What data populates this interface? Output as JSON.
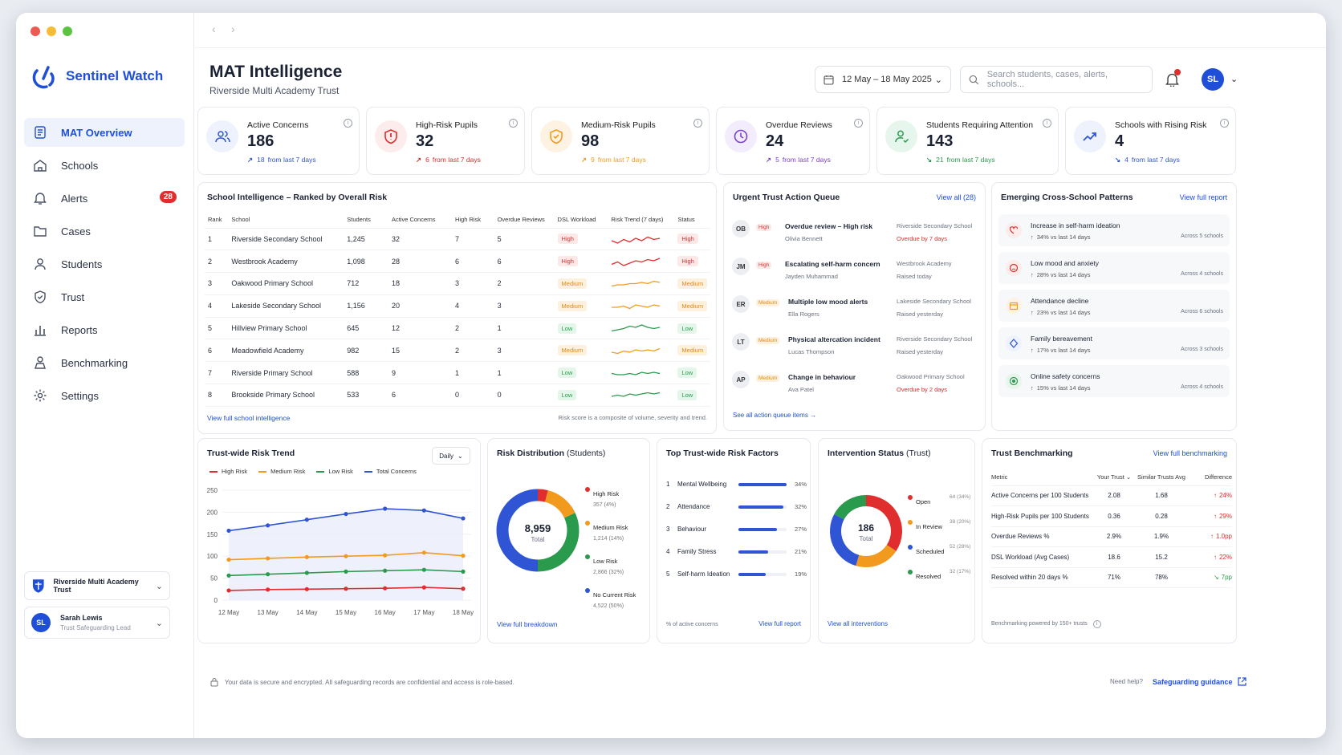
{
  "app": {
    "name": "Sentinel Watch"
  },
  "nav": [
    {
      "label": "MAT Overview",
      "icon": "overview-icon",
      "active": true
    },
    {
      "label": "Schools",
      "icon": "school-icon"
    },
    {
      "label": "Alerts",
      "icon": "bell-icon",
      "badge": "28"
    },
    {
      "label": "Cases",
      "icon": "folder-icon"
    },
    {
      "label": "Students",
      "icon": "person-icon"
    },
    {
      "label": "Trust",
      "icon": "shield-icon"
    },
    {
      "label": "Reports",
      "icon": "bar-chart-icon"
    },
    {
      "label": "Benchmarking",
      "icon": "benchmark-icon"
    },
    {
      "label": "Settings",
      "icon": "gear-icon"
    }
  ],
  "trust_selector": {
    "label": "Riverside Multi Academy Trust"
  },
  "user": {
    "initials": "SL",
    "name": "Sarah Lewis",
    "role": "Trust Safeguarding Lead"
  },
  "header": {
    "title": "MAT Intelligence",
    "subtitle": "Riverside Multi Academy Trust",
    "date_range": "12 May – 18 May 2025",
    "search_placeholder": "Search students, cases, alerts, schools...",
    "avatar": "SL"
  },
  "kpis": [
    {
      "label": "Active Concerns",
      "value": "186",
      "delta": "18",
      "suffix": "from last 7 days",
      "dir": "up",
      "color": "#2f55d4",
      "bg": "#eef2fd",
      "icon": "people-icon"
    },
    {
      "label": "High-Risk Pupils",
      "value": "32",
      "delta": "6",
      "suffix": "from last 7 days",
      "dir": "up",
      "color": "#e02d2d",
      "bg": "#fdecec",
      "icon": "shield-alert-icon"
    },
    {
      "label": "Medium-Risk Pupils",
      "value": "98",
      "delta": "9",
      "suffix": "from last 7 days",
      "dir": "up",
      "color": "#f29a1d",
      "bg": "#fef3e3",
      "icon": "shield-check-icon"
    },
    {
      "label": "Overdue Reviews",
      "value": "24",
      "delta": "5",
      "suffix": "from last 7 days",
      "dir": "up",
      "color": "#7b3fd1",
      "bg": "#f2ecfc",
      "icon": "clock-icon"
    },
    {
      "label": "Students Requiring Attention",
      "value": "143",
      "delta": "21",
      "suffix": "from last 7 days",
      "dir": "down",
      "color": "#2a9a4d",
      "bg": "#e7f6ec",
      "icon": "person-check-icon"
    },
    {
      "label": "Schools with Rising Risk",
      "value": "4",
      "delta": "4",
      "suffix": "from last 7 days",
      "dir": "down",
      "color": "#2f55d4",
      "bg": "#eef2fd",
      "icon": "trend-up-icon"
    }
  ],
  "school_intel": {
    "title": "School Intelligence – Ranked by Overall Risk",
    "columns": [
      "Rank",
      "School",
      "Students",
      "Active Concerns",
      "High Risk",
      "Overdue Reviews",
      "DSL Workload",
      "Risk Trend (7 days)",
      "Status"
    ],
    "rows": [
      {
        "rank": "1",
        "school": "Riverside Secondary School",
        "students": "1,245",
        "active": "32",
        "high": "7",
        "overdue": "5",
        "workload": "High",
        "status": "High",
        "level": "high"
      },
      {
        "rank": "2",
        "school": "Westbrook Academy",
        "students": "1,098",
        "active": "28",
        "high": "6",
        "overdue": "6",
        "workload": "High",
        "status": "High",
        "level": "high"
      },
      {
        "rank": "3",
        "school": "Oakwood Primary School",
        "students": "712",
        "active": "18",
        "high": "3",
        "overdue": "2",
        "workload": "Medium",
        "status": "Medium",
        "level": "med"
      },
      {
        "rank": "4",
        "school": "Lakeside Secondary School",
        "students": "1,156",
        "active": "20",
        "high": "4",
        "overdue": "3",
        "workload": "Medium",
        "status": "Medium",
        "level": "med"
      },
      {
        "rank": "5",
        "school": "Hillview Primary School",
        "students": "645",
        "active": "12",
        "high": "2",
        "overdue": "1",
        "workload": "Low",
        "status": "Low",
        "level": "low"
      },
      {
        "rank": "6",
        "school": "Meadowfield Academy",
        "students": "982",
        "active": "15",
        "high": "2",
        "overdue": "3",
        "workload": "Medium",
        "status": "Medium",
        "level": "med"
      },
      {
        "rank": "7",
        "school": "Riverside Primary School",
        "students": "588",
        "active": "9",
        "high": "1",
        "overdue": "1",
        "workload": "Low",
        "status": "Low",
        "level": "low"
      },
      {
        "rank": "8",
        "school": "Brookside Primary School",
        "students": "533",
        "active": "6",
        "high": "0",
        "overdue": "0",
        "workload": "Low",
        "status": "Low",
        "level": "low"
      }
    ],
    "link": "View full school intelligence",
    "note": "Risk score is a composite of volume, severity and trend."
  },
  "queue": {
    "title": "Urgent Trust Action Queue",
    "link": "View all (28)",
    "footer": "See all action queue items",
    "items": [
      {
        "initials": "OB",
        "tag": "High",
        "level": "high",
        "title": "Overdue review – High risk",
        "name": "Olivia Bennett",
        "school": "Riverside Secondary School",
        "due": "Overdue by 7 days",
        "red": true
      },
      {
        "initials": "JM",
        "tag": "High",
        "level": "high",
        "title": "Escalating self-harm concern",
        "name": "Jayden Muhammad",
        "school": "Westbrook Academy",
        "due": "Raised today",
        "red": false
      },
      {
        "initials": "ER",
        "tag": "Medium",
        "level": "med",
        "title": "Multiple low mood alerts",
        "name": "Ella Rogers",
        "school": "Lakeside Secondary School",
        "due": "Raised yesterday",
        "red": false
      },
      {
        "initials": "LT",
        "tag": "Medium",
        "level": "med",
        "title": "Physical altercation incident",
        "name": "Lucas Thompson",
        "school": "Riverside Secondary School",
        "due": "Raised yesterday",
        "red": false
      },
      {
        "initials": "AP",
        "tag": "Medium",
        "level": "med",
        "title": "Change in behaviour",
        "name": "Ava Patel",
        "school": "Oakwood Primary School",
        "due": "Overdue by 2 days",
        "red": true
      }
    ]
  },
  "patterns": {
    "title": "Emerging Cross-School Patterns",
    "link": "View full report",
    "items": [
      {
        "title": "Increase in self-harm ideation",
        "change": "34% vs last 14 days",
        "across": "Across 5 schools",
        "color": "#e02d2d",
        "bg": "#fdecec",
        "icon": "heart-icon"
      },
      {
        "title": "Low mood and anxiety",
        "change": "28% vs last 14 days",
        "across": "Across 4 schools",
        "color": "#e02d2d",
        "bg": "#fdecec",
        "icon": "mood-icon"
      },
      {
        "title": "Attendance decline",
        "change": "23% vs last 14 days",
        "across": "Across 6 schools",
        "color": "#f29a1d",
        "bg": "#fef3e3",
        "icon": "calendar-icon"
      },
      {
        "title": "Family bereavement",
        "change": "17% vs last 14 days",
        "across": "Across 3 schools",
        "color": "#2f55d4",
        "bg": "#eef2fd",
        "icon": "diamond-icon"
      },
      {
        "title": "Online safety concerns",
        "change": "15% vs last 14 days",
        "across": "Across 4 schools",
        "color": "#2a9a4d",
        "bg": "#e7f6ec",
        "icon": "target-icon"
      }
    ]
  },
  "chart_data": [
    {
      "type": "line",
      "title": "Trust-wide Risk Trend",
      "granularity": "Daily",
      "ylim": [
        0,
        250
      ],
      "yticks": [
        "250",
        "200",
        "150",
        "100",
        "50",
        "0"
      ],
      "categories": [
        "12 May",
        "13 May",
        "14 May",
        "15 May",
        "16 May",
        "17 May",
        "18 May"
      ],
      "series": [
        {
          "name": "High Risk",
          "color": "#e02d2d",
          "values": [
            22,
            24,
            25,
            26,
            27,
            29,
            26
          ]
        },
        {
          "name": "Medium Risk",
          "color": "#f29a1d",
          "values": [
            92,
            95,
            98,
            100,
            102,
            108,
            101
          ]
        },
        {
          "name": "Low Risk",
          "color": "#2a9a4d",
          "values": [
            56,
            59,
            62,
            65,
            67,
            69,
            65
          ]
        },
        {
          "name": "Total Concerns",
          "color": "#2f55d4",
          "values": [
            158,
            170,
            183,
            196,
            208,
            204,
            186
          ]
        }
      ]
    },
    {
      "type": "pie",
      "title": "Risk Distribution",
      "title_suffix": "(Students)",
      "total": "8,959",
      "total_label": "Total",
      "link": "View full breakdown",
      "series": [
        {
          "name": "High Risk",
          "detail": "357 (4%)",
          "value": 4,
          "color": "#e02d2d"
        },
        {
          "name": "Medium Risk",
          "detail": "1,214 (14%)",
          "value": 14,
          "color": "#f29a1d"
        },
        {
          "name": "Low Risk",
          "detail": "2,866 (32%)",
          "value": 32,
          "color": "#2a9a4d"
        },
        {
          "name": "No Current Risk",
          "detail": "4,522 (50%)",
          "value": 50,
          "color": "#2f55d4"
        }
      ]
    },
    {
      "type": "bar",
      "title": "Top Trust-wide Risk Factors",
      "note": "% of active concerns",
      "link": "View full report",
      "categories": [
        "Mental Wellbeing",
        "Attendance",
        "Behaviour",
        "Family Stress",
        "Self-harm Ideation"
      ],
      "ranks": [
        "1",
        "2",
        "3",
        "4",
        "5"
      ],
      "values": [
        34,
        32,
        27,
        21,
        19
      ],
      "labels": [
        "34%",
        "32%",
        "27%",
        "21%",
        "19%"
      ],
      "color": "#2f55d4",
      "xlim": [
        0,
        40
      ]
    },
    {
      "type": "pie",
      "title": "Intervention Status",
      "title_suffix": "(Trust)",
      "total": "186",
      "total_label": "Total",
      "link": "View all interventions",
      "series": [
        {
          "name": "Open",
          "detail": "64 (34%)",
          "value": 34,
          "color": "#e02d2d"
        },
        {
          "name": "In Review",
          "detail": "38 (20%)",
          "value": 20,
          "color": "#f29a1d"
        },
        {
          "name": "Scheduled",
          "detail": "52 (28%)",
          "value": 28,
          "color": "#2f55d4"
        },
        {
          "name": "Resolved",
          "detail": "32 (17%)",
          "value": 17,
          "color": "#2a9a4d"
        }
      ]
    }
  ],
  "bench": {
    "title": "Trust Benchmarking",
    "link": "View full benchmarking",
    "columns": [
      "Metric",
      "Your Trust",
      "Similar Trusts Avg",
      "Difference"
    ],
    "rows": [
      {
        "metric": "Active Concerns per 100 Students",
        "yours": "2.08",
        "avg": "1.68",
        "diff": "24%",
        "dir": "up"
      },
      {
        "metric": "High-Risk Pupils per 100 Students",
        "yours": "0.36",
        "avg": "0.28",
        "diff": "29%",
        "dir": "up"
      },
      {
        "metric": "Overdue Reviews %",
        "yours": "2.9%",
        "avg": "1.9%",
        "diff": "1.0pp",
        "dir": "up"
      },
      {
        "metric": "DSL Workload (Avg Cases)",
        "yours": "18.6",
        "avg": "15.2",
        "diff": "22%",
        "dir": "up"
      },
      {
        "metric": "Resolved within 20 days %",
        "yours": "71%",
        "avg": "78%",
        "diff": "7pp",
        "dir": "down"
      }
    ],
    "footer": "Benchmarking powered by 150+ trusts"
  },
  "footer": {
    "security": "Your data is secure and encrypted. All safeguarding records are confidential and access is role-based.",
    "help": "Need help?",
    "guidance": "Safeguarding guidance"
  }
}
